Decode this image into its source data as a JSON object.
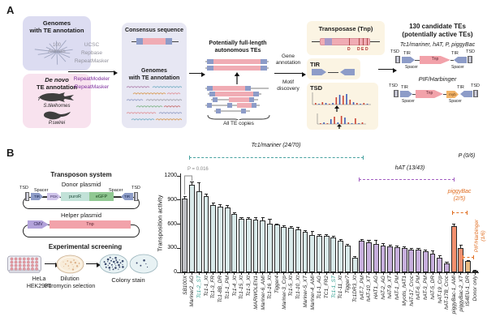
{
  "panel_a": {
    "label": "A",
    "genomes_box": {
      "title_line1": "Genomes",
      "title_line2": "with TE annotation",
      "tree_label_line1": "100",
      "tree_label_line2": "Animals"
    },
    "denovo_box": {
      "title_line1": "De novo",
      "title_line2": "TE annotation",
      "species1": "S.tileihornes",
      "species2": "P.swirei"
    },
    "tools_gray": [
      "UCSC",
      "Repbase",
      "RepeatMasker"
    ],
    "tools_purple": [
      "RepeatModeler",
      "RepeatMasker"
    ],
    "consensus_box": {
      "title": "Consensus sequence",
      "subtitle_line1": "Genomes",
      "subtitle_line2": "with TE annotation"
    },
    "full_length": {
      "title_line1": "Potentially full-length",
      "title_line2": "autonomous TEs",
      "brace_label": "All TE copies"
    },
    "step_arrow": {
      "top_line1": "Gene",
      "top_line2": "annotation",
      "bottom_line1": "Motif",
      "bottom_line2": "discovery"
    },
    "feature_boxes": {
      "transposase_title": "Transposase (Tnp)",
      "domain_letters": [
        "D",
        "D",
        "E",
        "D"
      ],
      "tir_title": "TIR",
      "tsd_title": "TSD"
    },
    "candidates": {
      "title_line1": "130 candidate TEs",
      "title_line2": "(potentially active TEs)",
      "group1_label": "Tc1/mariner, hAT, P, piggyBac",
      "group2_label": "PIF/Harbinger",
      "tsd": "TSD",
      "tir": "TIR",
      "spacer": "Spacer",
      "tnp": "Tnp",
      "myb": "myb"
    }
  },
  "panel_b": {
    "label": "B",
    "system_title": "Transposon system",
    "donor": {
      "title": "Donor plasmid",
      "tsd": "TSD",
      "spacer": "Spacer",
      "tir": "TIR",
      "pgk": "PGK",
      "puror": "puroR",
      "egfp": "eGFP"
    },
    "helper": {
      "title": "Helper plasmid",
      "cmv": "CMV",
      "tnp": "Tnp"
    },
    "screening": {
      "title": "Experimental screening",
      "cells_line1": "HeLa",
      "cells_line2": "HEK293T",
      "dilution_line1": "Dilution",
      "dilution_line2": "Puromycin selection",
      "stain_label": "Colony stain"
    }
  },
  "colors": {
    "genomes_box": "#dcdcf1",
    "denovo_box": "#f8e2ee",
    "consensus_box": "#e7e7f3",
    "feature_box": "#fbf4e3",
    "te_body": "#f0acb4",
    "tir_blue": "#8d9cc8",
    "tool_text_gray": "#92929c",
    "tool_text_purple": "#7d2f9e",
    "pgk": "#cfc4ea",
    "puror": "#c2e2d8",
    "egfp": "#90c892",
    "cmv": "#b2a2da",
    "tnp_pink": "#f2a2aa",
    "myb_orange": "#f2b468",
    "dish_blue": "#e8f2f4",
    "dish_cream": "#f8ecd9",
    "well_pink": "#e39aa2"
  },
  "chart_data": {
    "type": "bar",
    "ylabel": "Transposition activity",
    "yticks": [
      0,
      300,
      600,
      900,
      1200
    ],
    "ylim": [
      0,
      1260
    ],
    "p_annotation": "P = 0.016",
    "p_group_label": "P (0/6)",
    "highlight_tick_color": "#2f9e8f",
    "highlighted_ticks": [
      "Tc1-2_ST",
      "Tc1-1_ST"
    ],
    "categories": [
      "SB100X",
      "Mariner2_AG",
      "Tc1-2_ST",
      "Tc1-1_Xt",
      "Tc1-3_FR",
      "Tc1-8B_DR",
      "Tc1-1_PM",
      "Tc1-4_Xt",
      "Tc1-15_Xt",
      "Tc1-3_Xt",
      "MARWOLEN1",
      "Mariner-6_AMi",
      "Tc1-16_Xt",
      "Tigger4",
      "Mariner-3_Crp",
      "Tc1-5_Xt",
      "Tc1-10_Xt",
      "Mariner-5_XT",
      "Mariner-4_AMi",
      "Tc1-1_AG",
      "TC1_FR2",
      "Tc1-1_ST",
      "Tc1-11_Xt",
      "Tigger7",
      "Tc1DR3_Xt",
      "hAT-7_PM",
      "hAT-10_XT",
      "HAT1_AG",
      "hAT-2_AG",
      "hAT-9_XT",
      "hAT-1_PM",
      "Myotis_hAT1",
      "hAT-17_Croc",
      "hAT-6_PM",
      "hAT-3_PM",
      "hAT-5_DR",
      "hAT-19_Crp",
      "hAT-17B_Croc",
      "piggyBac-1_AMi",
      "piggyBac-2_XT",
      "IS4EU-1_DR",
      "Donor only"
    ],
    "values": [
      920,
      1090,
      1010,
      950,
      840,
      820,
      805,
      730,
      670,
      665,
      660,
      650,
      610,
      590,
      565,
      550,
      535,
      500,
      465,
      455,
      450,
      430,
      390,
      330,
      185,
      390,
      370,
      355,
      335,
      320,
      310,
      300,
      285,
      280,
      265,
      235,
      185,
      110,
      575,
      300,
      140,
      25
    ],
    "errors": [
      30,
      35,
      105,
      25,
      30,
      25,
      30,
      20,
      15,
      20,
      30,
      40,
      55,
      20,
      20,
      20,
      25,
      20,
      50,
      20,
      20,
      20,
      25,
      20,
      15,
      25,
      30,
      45,
      25,
      20,
      20,
      25,
      20,
      25,
      20,
      35,
      30,
      20,
      30,
      40,
      15,
      8
    ],
    "groups": [
      {
        "name": "control",
        "start": 0,
        "end": 0,
        "bar_color": "#bfc0c4",
        "label": ""
      },
      {
        "name": "Tc1/mariner",
        "start": 1,
        "end": 24,
        "bar_color": "#d9eaea",
        "line_color": "#47a2a0",
        "label": "Tc1/mariner (24/70)"
      },
      {
        "name": "hAT",
        "start": 25,
        "end": 37,
        "bar_color": "#c7afdd",
        "line_color": "#a25ec2",
        "label": "hAT (13/43)"
      },
      {
        "name": "piggyBac",
        "start": 38,
        "end": 39,
        "bar_color": "#f2906f",
        "line_color": "#e06c1f",
        "label": "piggyBac\n(2/5)"
      },
      {
        "name": "PIF/Harbinger",
        "start": 40,
        "end": 40,
        "bar_color": "#eabc83",
        "line_color": "#e06c1f",
        "label": "PIF/Harbinger\n(1/6)"
      },
      {
        "name": "donor_only",
        "start": 41,
        "end": 41,
        "bar_color": "#c6c6ca",
        "label": ""
      }
    ]
  }
}
